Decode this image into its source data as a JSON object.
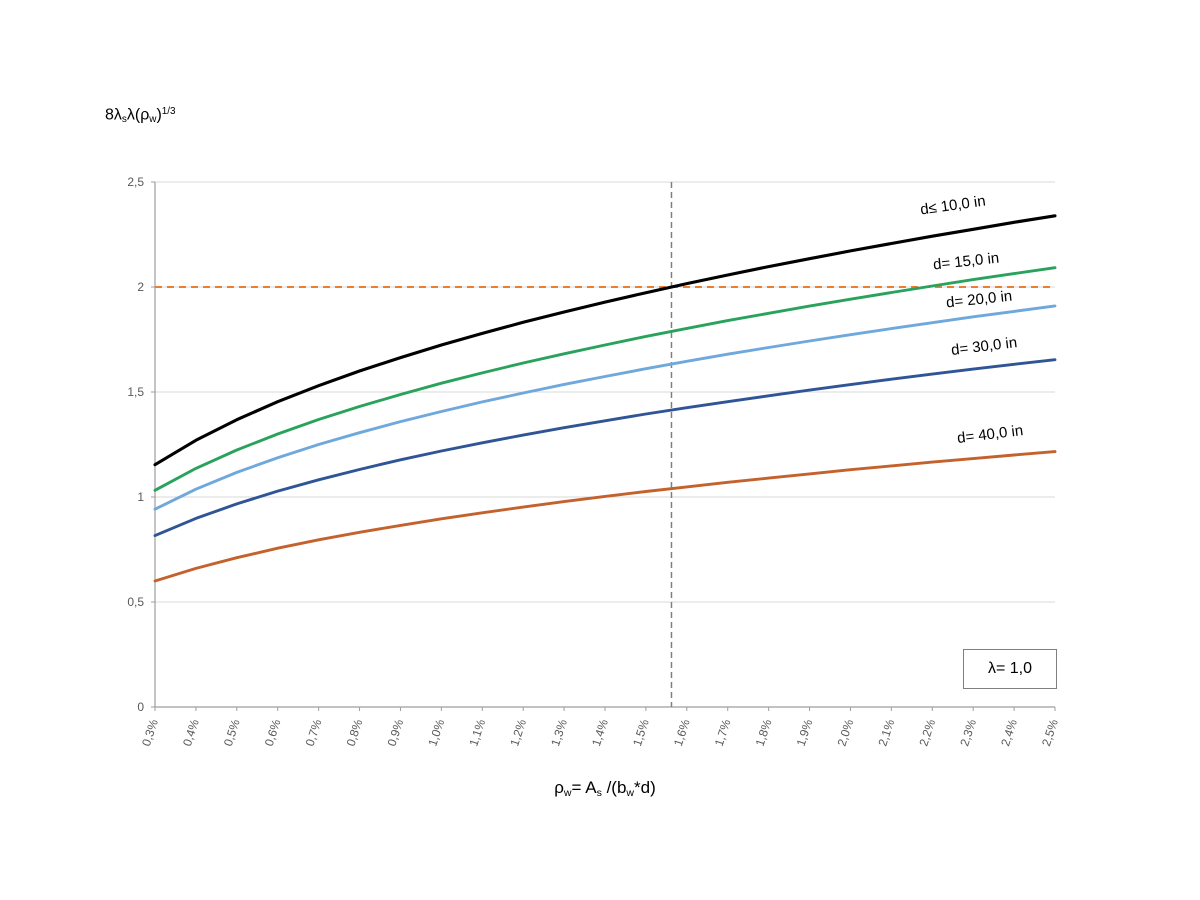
{
  "chart_data": {
    "type": "line",
    "y_axis_title_parts": {
      "p1": "8λ",
      "sub1": "s",
      "p2": "λ(ρ",
      "sub2": "w",
      "p3": ")",
      "sup": "1/3"
    },
    "x_axis_title_parts": {
      "p1": "ρ",
      "sub1": "w",
      "p2": "= A",
      "sub2": "s",
      "p3": " /(b",
      "sub3": "w",
      "p4": "*d)"
    },
    "xlim": [
      0.3,
      2.5
    ],
    "ylim": [
      0,
      2.5
    ],
    "grid": true,
    "grid_color": "#d9d9d9",
    "axis_color": "#9e9e9e",
    "tick_label_color": "#595959",
    "x_values": [
      0.3,
      0.4,
      0.5,
      0.6,
      0.7,
      0.8,
      0.9,
      1.0,
      1.1,
      1.2,
      1.3,
      1.4,
      1.5,
      1.6,
      1.7,
      1.8,
      1.9,
      2.0,
      2.1,
      2.2,
      2.3,
      2.4,
      2.5
    ],
    "x_tick_labels": [
      "0,3%",
      "0,4%",
      "0,5%",
      "0,6%",
      "0,7%",
      "0,8%",
      "0,9%",
      "1,0%",
      "1,1%",
      "1,2%",
      "1,3%",
      "1,4%",
      "1,5%",
      "1,6%",
      "1,7%",
      "1,8%",
      "1,9%",
      "2,0%",
      "2,1%",
      "2,2%",
      "2,3%",
      "2,4%",
      "2,5%"
    ],
    "y_ticks": [
      {
        "value": 0,
        "label": "0"
      },
      {
        "value": 0.5,
        "label": "0,5"
      },
      {
        "value": 1,
        "label": "1"
      },
      {
        "value": 1.5,
        "label": "1,5"
      },
      {
        "value": 2,
        "label": "2"
      },
      {
        "value": 2.5,
        "label": "2,5"
      }
    ],
    "series": [
      {
        "label": "d≤ 10,0 in",
        "color": "#000000",
        "width": 3.1,
        "values": [
          1.154,
          1.27,
          1.368,
          1.454,
          1.53,
          1.6,
          1.664,
          1.724,
          1.779,
          1.832,
          1.881,
          1.928,
          1.973,
          2.016,
          2.057,
          2.097,
          2.135,
          2.172,
          2.207,
          2.242,
          2.275,
          2.308,
          2.339
        ]
      },
      {
        "label": "d= 15,0 in",
        "color": "#29a35c",
        "width": 2.9,
        "values": [
          1.032,
          1.136,
          1.224,
          1.3,
          1.369,
          1.431,
          1.488,
          1.542,
          1.591,
          1.638,
          1.682,
          1.724,
          1.765,
          1.803,
          1.84,
          1.875,
          1.909,
          1.942,
          1.974,
          2.005,
          2.035,
          2.064,
          2.092
        ]
      },
      {
        "label": "d= 20,0 in",
        "color": "#6fa8dc",
        "width": 2.9,
        "values": [
          0.942,
          1.037,
          1.117,
          1.187,
          1.25,
          1.306,
          1.359,
          1.407,
          1.453,
          1.495,
          1.536,
          1.574,
          1.611,
          1.646,
          1.68,
          1.712,
          1.743,
          1.773,
          1.802,
          1.83,
          1.858,
          1.884,
          1.91
        ]
      },
      {
        "label": "d= 30,0 in",
        "color": "#2f5597",
        "width": 2.9,
        "values": [
          0.816,
          0.898,
          0.967,
          1.028,
          1.082,
          1.131,
          1.177,
          1.219,
          1.258,
          1.295,
          1.33,
          1.363,
          1.395,
          1.425,
          1.454,
          1.482,
          1.509,
          1.535,
          1.561,
          1.585,
          1.609,
          1.632,
          1.654
        ]
      },
      {
        "label": "d= 40,0 in",
        "color": "#c4622d",
        "width": 2.9,
        "values": [
          0.6,
          0.66,
          0.711,
          0.756,
          0.796,
          0.832,
          0.865,
          0.896,
          0.925,
          0.952,
          0.978,
          1.003,
          1.026,
          1.048,
          1.07,
          1.09,
          1.11,
          1.13,
          1.148,
          1.166,
          1.183,
          1.2,
          1.216
        ]
      }
    ],
    "reference_lines": {
      "horizontal": {
        "y": 2,
        "color": "#ed7d31",
        "style": "dashed"
      },
      "vertical": {
        "x": 1.5625,
        "color": "#7f7f7f",
        "style": "dashed"
      }
    },
    "annotation": {
      "label": "λ= 1,0"
    }
  }
}
